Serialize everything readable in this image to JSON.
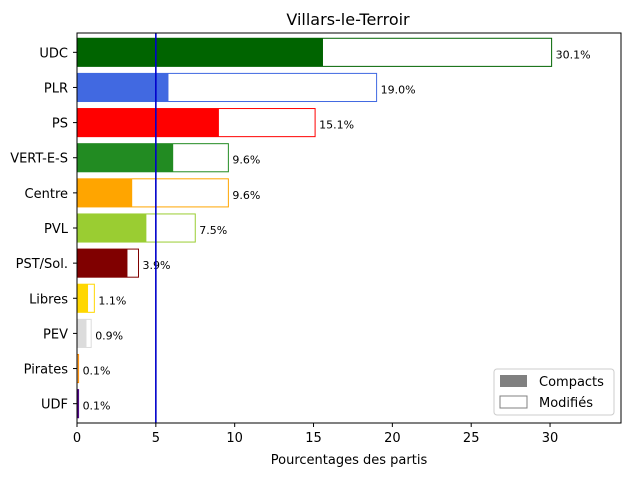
{
  "chart_data": {
    "type": "bar",
    "orientation": "horizontal",
    "title": "Villars-le-Terroir",
    "xlabel": "Pourcentages des partis",
    "ylabel": "",
    "xlim": [
      0,
      34.5
    ],
    "xticks": [
      0,
      5,
      10,
      15,
      20,
      25,
      30
    ],
    "threshold": {
      "value": 5,
      "color": "#0000cc"
    },
    "categories": [
      "UDC",
      "PLR",
      "PS",
      "VERT-E-S",
      "Centre",
      "PVL",
      "PST/Sol.",
      "Libres",
      "PEV",
      "Pirates",
      "UDF"
    ],
    "colors": [
      "#006400",
      "#4169e1",
      "#ff0000",
      "#228b22",
      "#ffa500",
      "#9acd32",
      "#800000",
      "#ffd700",
      "#dcdcdc",
      "#ff8c00",
      "#4b0082"
    ],
    "series": [
      {
        "name": "Compacts",
        "values": [
          15.6,
          5.8,
          9.0,
          6.1,
          3.5,
          4.4,
          3.2,
          0.7,
          0.6,
          0.05,
          0.08
        ]
      },
      {
        "name": "Modifiés",
        "values": [
          30.1,
          19.0,
          15.1,
          9.6,
          9.6,
          7.5,
          3.9,
          1.1,
          0.9,
          0.1,
          0.1
        ]
      }
    ],
    "labels": [
      "30.1%",
      "19.0%",
      "15.1%",
      "9.6%",
      "9.6%",
      "7.5%",
      "3.9%",
      "1.1%",
      "0.9%",
      "0.1%",
      "0.1%"
    ],
    "legend": {
      "position": "lower-right",
      "entries": [
        "Compacts",
        "Modifiés"
      ],
      "compact_swatch": "#808080",
      "modified_swatch": "#808080"
    }
  }
}
